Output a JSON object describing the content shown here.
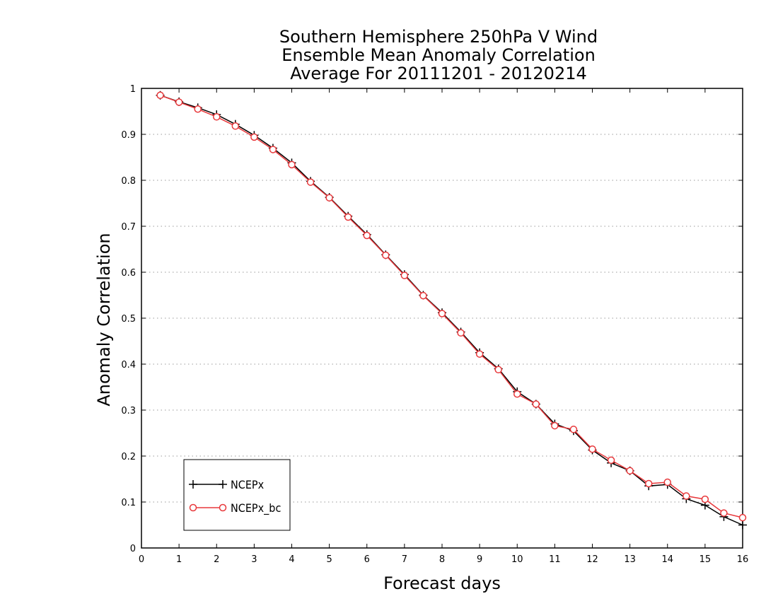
{
  "chart_data": {
    "type": "line",
    "title_lines": [
      "Southern Hemisphere 250hPa V Wind",
      "Ensemble Mean Anomaly Correlation",
      "Average For 20111201 - 20120214"
    ],
    "xlabel": "Forecast days",
    "ylabel": "Anomaly Correlation",
    "xlim": [
      0,
      16
    ],
    "ylim": [
      0,
      1
    ],
    "xticks": [
      "0",
      "1",
      "2",
      "3",
      "4",
      "5",
      "6",
      "7",
      "8",
      "9",
      "10",
      "11",
      "12",
      "13",
      "14",
      "15",
      "16"
    ],
    "yticks": [
      "0",
      "0.1",
      "0.2",
      "0.3",
      "0.4",
      "0.5",
      "0.6",
      "0.7",
      "0.8",
      "0.9",
      "1"
    ],
    "grid": "horizontal dotted",
    "legend_position": "bottom-left",
    "x": [
      0.5,
      1,
      1.5,
      2,
      2.5,
      3,
      3.5,
      4,
      4.5,
      5,
      5.5,
      6,
      6.5,
      7,
      7.5,
      8,
      8.5,
      9,
      9.5,
      10,
      10.5,
      11,
      11.5,
      12,
      12.5,
      13,
      13.5,
      14,
      14.5,
      15,
      15.5,
      16
    ],
    "series": [
      {
        "name": "NCEPx",
        "color": "#000000",
        "marker": "plus",
        "values": [
          0.985,
          0.971,
          0.958,
          0.943,
          0.922,
          0.898,
          0.87,
          0.838,
          0.798,
          0.763,
          0.722,
          0.682,
          0.638,
          0.595,
          0.55,
          0.512,
          0.47,
          0.425,
          0.39,
          0.34,
          0.313,
          0.27,
          0.255,
          0.213,
          0.185,
          0.168,
          0.135,
          0.138,
          0.107,
          0.093,
          0.068,
          0.05
        ]
      },
      {
        "name": "NCEPx_bc",
        "color": "#e8383b",
        "marker": "circle",
        "values": [
          0.985,
          0.97,
          0.955,
          0.938,
          0.918,
          0.894,
          0.867,
          0.834,
          0.796,
          0.762,
          0.72,
          0.68,
          0.637,
          0.593,
          0.549,
          0.51,
          0.468,
          0.422,
          0.388,
          0.335,
          0.313,
          0.266,
          0.258,
          0.215,
          0.191,
          0.168,
          0.14,
          0.143,
          0.113,
          0.106,
          0.076,
          0.066
        ]
      }
    ]
  }
}
